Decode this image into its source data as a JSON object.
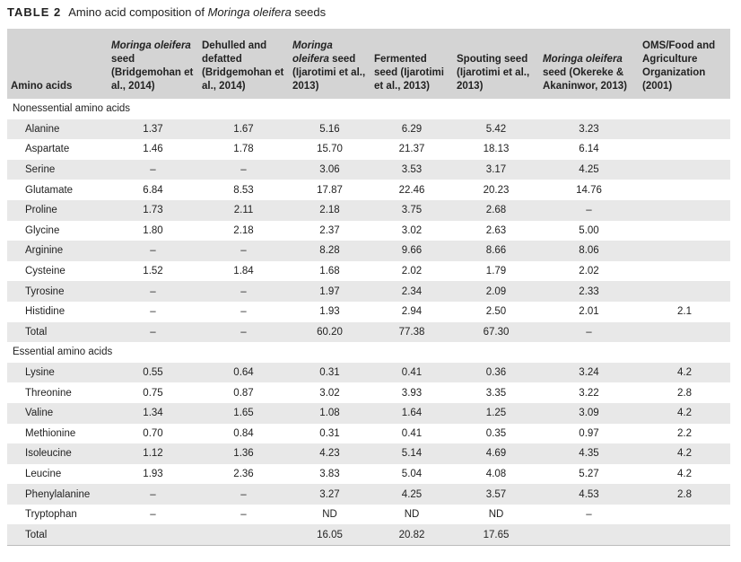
{
  "caption": {
    "label": "TABLE 2",
    "text_pre": "Amino acid composition of ",
    "text_it": "Moringa oleifera",
    "text_post": " seeds"
  },
  "headers": {
    "amino": "Amino acids",
    "c1_it": "Moringa oleifera",
    "c1_rest": " seed (Bridgemohan et al., 2014)",
    "c2": "Dehulled and defatted (Bridgemohan et al., 2014)",
    "c3_it": "Moringa oleifera",
    "c3_rest": " seed (Ijarotimi et al., 2013)",
    "c4": "Fermented seed (Ijarotimi et al., 2013)",
    "c5": "Spouting seed (Ijarotimi et al., 2013)",
    "c6_it": "Moringa oleifera",
    "c6_rest": " seed (Okereke & Akaninwor, 2013)",
    "c7": "OMS/Food and Agriculture Organization (2001)"
  },
  "sections": [
    {
      "title": "Nonessential amino acids",
      "rows": [
        [
          "Alanine",
          "1.37",
          "1.67",
          "5.16",
          "6.29",
          "5.42",
          "3.23",
          ""
        ],
        [
          "Aspartate",
          "1.46",
          "1.78",
          "15.70",
          "21.37",
          "18.13",
          "6.14",
          ""
        ],
        [
          "Serine",
          "–",
          "–",
          "3.06",
          "3.53",
          "3.17",
          "4.25",
          ""
        ],
        [
          "Glutamate",
          "6.84",
          "8.53",
          "17.87",
          "22.46",
          "20.23",
          "14.76",
          ""
        ],
        [
          "Proline",
          "1.73",
          "2.11",
          "2.18",
          "3.75",
          "2.68",
          "–",
          ""
        ],
        [
          "Glycine",
          "1.80",
          "2.18",
          "2.37",
          "3.02",
          "2.63",
          "5.00",
          ""
        ],
        [
          "Arginine",
          "–",
          "–",
          "8.28",
          "9.66",
          "8.66",
          "8.06",
          ""
        ],
        [
          "Cysteine",
          "1.52",
          "1.84",
          "1.68",
          "2.02",
          "1.79",
          "2.02",
          ""
        ],
        [
          "Tyrosine",
          "–",
          "–",
          "1.97",
          "2.34",
          "2.09",
          "2.33",
          ""
        ],
        [
          "Histidine",
          "–",
          "–",
          "1.93",
          "2.94",
          "2.50",
          "2.01",
          "2.1"
        ],
        [
          "Total",
          "–",
          "–",
          "60.20",
          "77.38",
          "67.30",
          "–",
          ""
        ]
      ]
    },
    {
      "title": "Essential amino acids",
      "rows": [
        [
          "Lysine",
          "0.55",
          "0.64",
          "0.31",
          "0.41",
          "0.36",
          "3.24",
          "4.2"
        ],
        [
          "Threonine",
          "0.75",
          "0.87",
          "3.02",
          "3.93",
          "3.35",
          "3.22",
          "2.8"
        ],
        [
          "Valine",
          "1.34",
          "1.65",
          "1.08",
          "1.64",
          "1.25",
          "3.09",
          "4.2"
        ],
        [
          "Methionine",
          "0.70",
          "0.84",
          "0.31",
          "0.41",
          "0.35",
          "0.97",
          "2.2"
        ],
        [
          "Isoleucine",
          "1.12",
          "1.36",
          "4.23",
          "5.14",
          "4.69",
          "4.35",
          "4.2"
        ],
        [
          "Leucine",
          "1.93",
          "2.36",
          "3.83",
          "5.04",
          "4.08",
          "5.27",
          "4.2"
        ],
        [
          "Phenylalanine",
          "–",
          "–",
          "3.27",
          "4.25",
          "3.57",
          "4.53",
          "2.8"
        ],
        [
          "Tryptophan",
          "–",
          "–",
          "ND",
          "ND",
          "ND",
          "–",
          ""
        ],
        [
          "Total",
          "",
          "",
          "16.05",
          "20.82",
          "17.65",
          "",
          ""
        ]
      ]
    }
  ]
}
